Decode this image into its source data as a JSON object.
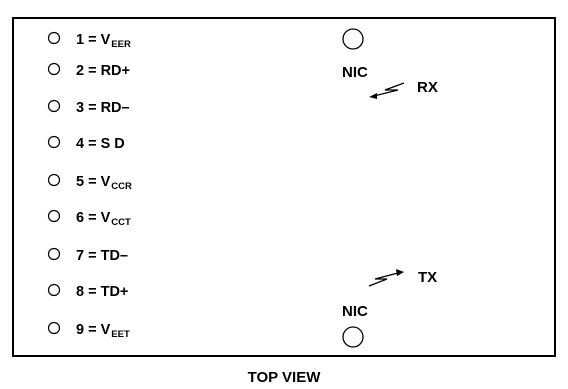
{
  "pins": [
    {
      "number": "1",
      "base": "V",
      "sub": "EER",
      "suffix": ""
    },
    {
      "number": "2",
      "base": "RD+",
      "sub": "",
      "suffix": ""
    },
    {
      "number": "3",
      "base": "RD–",
      "sub": "",
      "suffix": ""
    },
    {
      "number": "4",
      "base": "S D",
      "sub": "",
      "suffix": ""
    },
    {
      "number": "5",
      "base": "V",
      "sub": "CCR",
      "suffix": ""
    },
    {
      "number": "6",
      "base": "V",
      "sub": "CCT",
      "suffix": ""
    },
    {
      "number": "7",
      "base": "TD–",
      "sub": "",
      "suffix": ""
    },
    {
      "number": "8",
      "base": "TD+",
      "sub": "",
      "suffix": ""
    },
    {
      "number": "9",
      "base": "V",
      "sub": "EET",
      "suffix": ""
    }
  ],
  "nic_top_label": "NIC",
  "nic_bottom_label": "NIC",
  "rx_label": "RX",
  "tx_label": "TX",
  "footer_caption": "TOP VIEW"
}
